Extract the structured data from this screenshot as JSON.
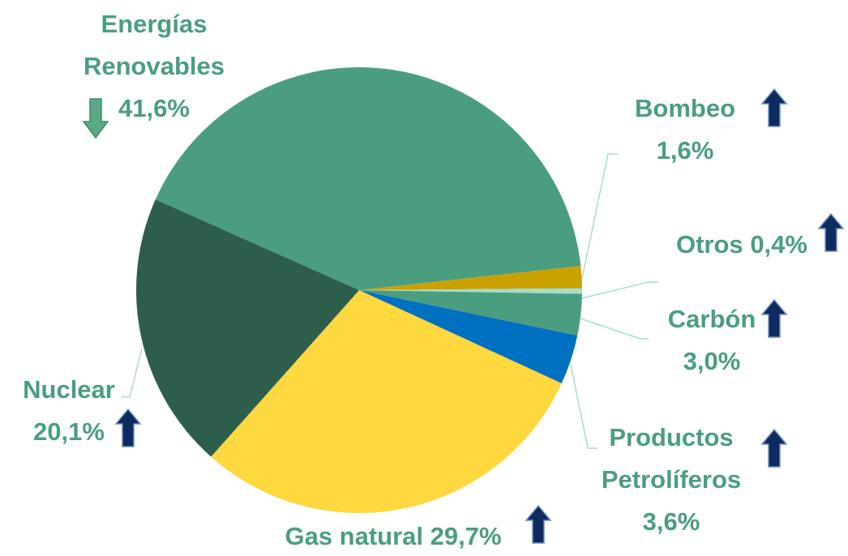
{
  "chart_data": {
    "type": "pie",
    "categories": [
      "Energías Renovables",
      "Bombeo",
      "Otros",
      "Carbón",
      "Productos Petrolíferos",
      "Gas natural",
      "Nuclear"
    ],
    "values": [
      41.6,
      1.6,
      0.4,
      3.0,
      3.6,
      29.7,
      20.1
    ],
    "value_labels": [
      "41,6%",
      "1,6%",
      "0,4%",
      "3,0%",
      "3,6%",
      "29,7%",
      "20,1%"
    ],
    "colors": [
      "#4a9e7f",
      "#c9a200",
      "#a8dcc8",
      "#4a9e7f",
      "#0070c0",
      "#fdd83e",
      "#2d5e4c"
    ],
    "trend": [
      "down",
      "up",
      "up",
      "up",
      "up",
      "up",
      "up"
    ]
  }
}
